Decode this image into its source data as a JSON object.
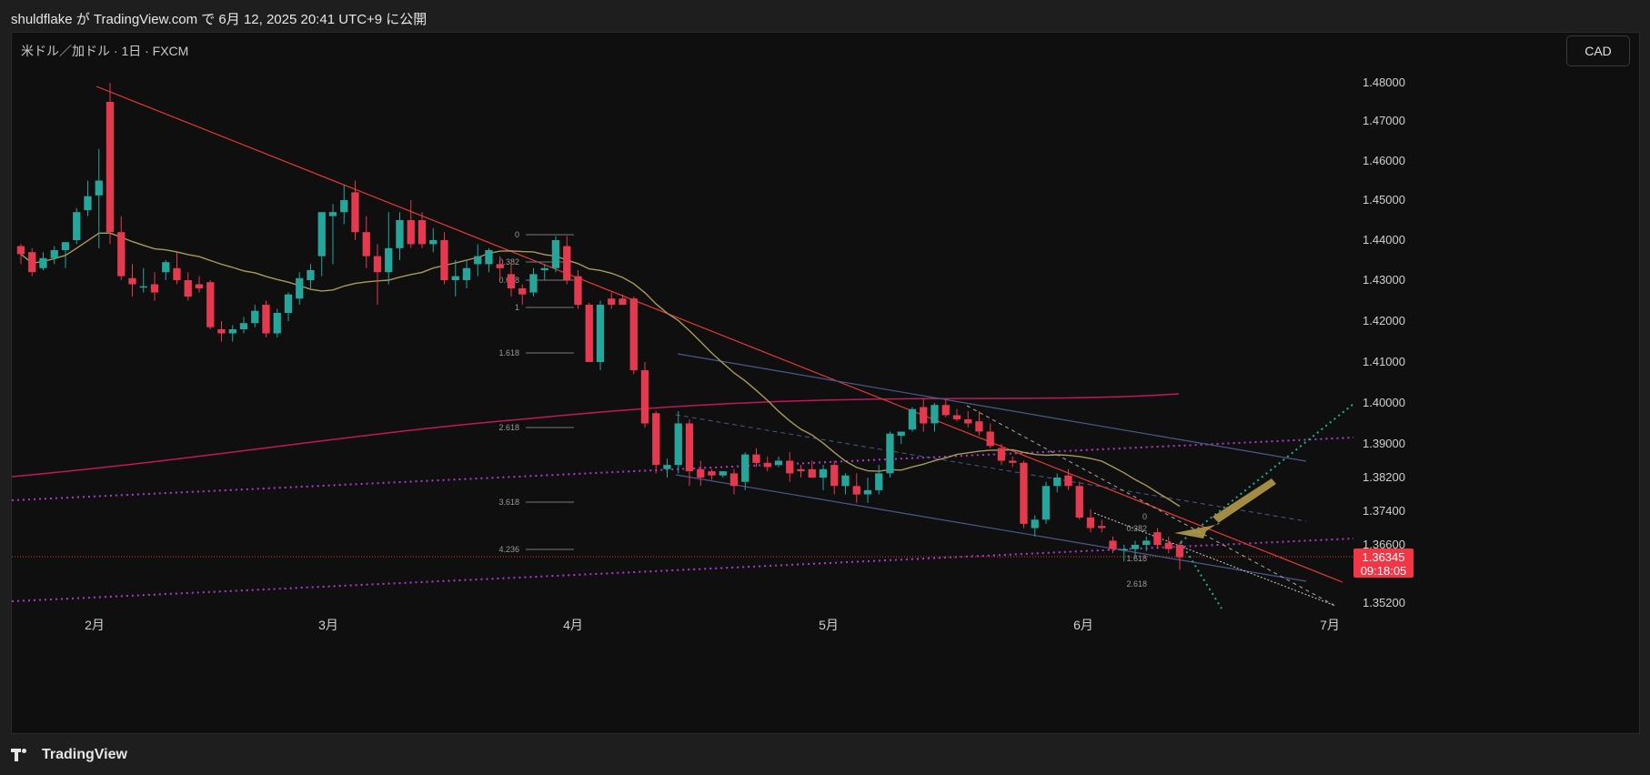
{
  "header": {
    "title": "shuldflake が TradingView.com で 6月 12, 2025 20:41 UTC+9 に公開"
  },
  "symbol": {
    "label": "米ドル／加ドル · 1日 · FXCM"
  },
  "currency_button": "CAD",
  "footer": {
    "brand": "TradingView"
  },
  "colors": {
    "up": "#26a69a",
    "down": "#e5394f",
    "ma_short": "#a89a5a",
    "ma_long": "#c2185b",
    "trend_red": "#e53935",
    "channel_blue": "#4a5a8a",
    "dotted_magenta": "#b03ad0",
    "dotted_green": "#22b08a",
    "arrow": "#b39a4a"
  },
  "chart_data": {
    "type": "candlestick",
    "symbol": "USDCAD",
    "timeframe": "1日",
    "x_months": [
      "2月",
      "3月",
      "4月",
      "5月",
      "6月",
      "7月"
    ],
    "y_ticks": [
      "1.48000",
      "1.47000",
      "1.46000",
      "1.45000",
      "1.44000",
      "1.43000",
      "1.42000",
      "1.41000",
      "1.40000",
      "1.39000",
      "1.38200",
      "1.37400",
      "1.36600",
      "1.35200"
    ],
    "last_price": "1.36345",
    "countdown": "09:18:05",
    "ylim": [
      1.349,
      1.487
    ],
    "candles_ohlc": [
      [
        1.4385,
        1.439,
        1.434,
        1.4365
      ],
      [
        1.437,
        1.438,
        1.431,
        1.432
      ],
      [
        1.433,
        1.437,
        1.4325,
        1.4355
      ],
      [
        1.4355,
        1.4385,
        1.434,
        1.4375
      ],
      [
        1.4375,
        1.4395,
        1.433,
        1.4395
      ],
      [
        1.44,
        1.448,
        1.439,
        1.447
      ],
      [
        1.4475,
        1.455,
        1.446,
        1.451
      ],
      [
        1.4512,
        1.463,
        1.438,
        1.455
      ],
      [
        1.475,
        1.48,
        1.439,
        1.442
      ],
      [
        1.442,
        1.446,
        1.43,
        1.431
      ],
      [
        1.4305,
        1.434,
        1.426,
        1.429
      ],
      [
        1.4285,
        1.433,
        1.427,
        1.4285
      ],
      [
        1.429,
        1.432,
        1.425,
        1.427
      ],
      [
        1.432,
        1.435,
        1.43,
        1.4345
      ],
      [
        1.433,
        1.437,
        1.429,
        1.43
      ],
      [
        1.43,
        1.432,
        1.425,
        1.426
      ],
      [
        1.429,
        1.431,
        1.427,
        1.428
      ],
      [
        1.4295,
        1.43,
        1.418,
        1.4185
      ],
      [
        1.418,
        1.42,
        1.415,
        1.417
      ],
      [
        1.417,
        1.419,
        1.415,
        1.418
      ],
      [
        1.418,
        1.421,
        1.417,
        1.4195
      ],
      [
        1.4195,
        1.424,
        1.4185,
        1.4225
      ],
      [
        1.424,
        1.425,
        1.416,
        1.417
      ],
      [
        1.417,
        1.423,
        1.416,
        1.422
      ],
      [
        1.422,
        1.427,
        1.42,
        1.4265
      ],
      [
        1.4255,
        1.432,
        1.424,
        1.4305
      ],
      [
        1.43,
        1.434,
        1.428,
        1.4325
      ],
      [
        1.436,
        1.444,
        1.431,
        1.447
      ],
      [
        1.446,
        1.449,
        1.434,
        1.447
      ],
      [
        1.447,
        1.454,
        1.444,
        1.45
      ],
      [
        1.452,
        1.455,
        1.44,
        1.442
      ],
      [
        1.442,
        1.446,
        1.433,
        1.436
      ],
      [
        1.436,
        1.439,
        1.424,
        1.432
      ],
      [
        1.432,
        1.447,
        1.429,
        1.438
      ],
      [
        1.438,
        1.447,
        1.435,
        1.445
      ],
      [
        1.445,
        1.45,
        1.438,
        1.439
      ],
      [
        1.445,
        1.447,
        1.438,
        1.439
      ],
      [
        1.439,
        1.443,
        1.437,
        1.44
      ],
      [
        1.44,
        1.442,
        1.429,
        1.43
      ],
      [
        1.43,
        1.435,
        1.426,
        1.431
      ],
      [
        1.43,
        1.435,
        1.428,
        1.433
      ],
      [
        1.434,
        1.439,
        1.431,
        1.436
      ],
      [
        1.434,
        1.438,
        1.432,
        1.4375
      ],
      [
        1.434,
        1.436,
        1.43,
        1.433
      ],
      [
        1.4315,
        1.434,
        1.426,
        1.428
      ],
      [
        1.428,
        1.429,
        1.424,
        1.4265
      ],
      [
        1.427,
        1.433,
        1.426,
        1.4315
      ],
      [
        1.4325,
        1.434,
        1.43,
        1.433
      ],
      [
        1.433,
        1.441,
        1.432,
        1.44
      ],
      [
        1.4385,
        1.441,
        1.429,
        1.43
      ],
      [
        1.431,
        1.4325,
        1.423,
        1.424
      ],
      [
        1.424,
        1.4245,
        1.41,
        1.41
      ],
      [
        1.41,
        1.425,
        1.408,
        1.424
      ],
      [
        1.4255,
        1.427,
        1.423,
        1.424
      ],
      [
        1.4255,
        1.4265,
        1.424,
        1.424
      ],
      [
        1.4255,
        1.426,
        1.407,
        1.408
      ],
      [
        1.408,
        1.41,
        1.394,
        1.395
      ],
      [
        1.3975,
        1.398,
        1.383,
        1.385
      ],
      [
        1.384,
        1.3865,
        1.382,
        1.385
      ],
      [
        1.385,
        1.398,
        1.383,
        1.395
      ],
      [
        1.395,
        1.396,
        1.38,
        1.3835
      ],
      [
        1.384,
        1.386,
        1.38,
        1.382
      ],
      [
        1.3835,
        1.384,
        1.3815,
        1.3825
      ],
      [
        1.3825,
        1.3835,
        1.382,
        1.3835
      ],
      [
        1.383,
        1.384,
        1.378,
        1.38
      ],
      [
        1.381,
        1.388,
        1.379,
        1.3875
      ],
      [
        1.3875,
        1.389,
        1.3845,
        1.3855
      ],
      [
        1.3855,
        1.387,
        1.3835,
        1.3845
      ],
      [
        1.385,
        1.387,
        1.3845,
        1.386
      ],
      [
        1.386,
        1.388,
        1.381,
        1.383
      ],
      [
        1.384,
        1.385,
        1.382,
        1.3835
      ],
      [
        1.384,
        1.386,
        1.382,
        1.382
      ],
      [
        1.382,
        1.385,
        1.379,
        1.384
      ],
      [
        1.385,
        1.386,
        1.378,
        1.38
      ],
      [
        1.38,
        1.383,
        1.378,
        1.3825
      ],
      [
        1.38,
        1.383,
        1.376,
        1.378
      ],
      [
        1.378,
        1.382,
        1.376,
        1.379
      ],
      [
        1.379,
        1.385,
        1.378,
        1.383
      ],
      [
        1.383,
        1.393,
        1.382,
        1.3925
      ],
      [
        1.392,
        1.393,
        1.39,
        1.393
      ],
      [
        1.3935,
        1.399,
        1.393,
        1.3985
      ],
      [
        1.399,
        1.401,
        1.393,
        1.395
      ],
      [
        1.395,
        1.4,
        1.393,
        1.3995
      ],
      [
        1.3995,
        1.401,
        1.3965,
        1.397
      ],
      [
        1.397,
        1.3985,
        1.3955,
        1.396
      ],
      [
        1.396,
        1.398,
        1.394,
        1.395
      ],
      [
        1.3955,
        1.398,
        1.392,
        1.393
      ],
      [
        1.393,
        1.395,
        1.389,
        1.3895
      ],
      [
        1.389,
        1.39,
        1.385,
        1.386
      ],
      [
        1.386,
        1.387,
        1.3845,
        1.3855
      ],
      [
        1.3855,
        1.386,
        1.37,
        1.371
      ],
      [
        1.37,
        1.373,
        1.368,
        1.372
      ],
      [
        1.372,
        1.381,
        1.371,
        1.38
      ],
      [
        1.38,
        1.383,
        1.3785,
        1.382
      ],
      [
        1.3825,
        1.384,
        1.379,
        1.38
      ],
      [
        1.38,
        1.381,
        1.372,
        1.3725
      ],
      [
        1.3725,
        1.3745,
        1.369,
        1.37
      ],
      [
        1.3705,
        1.372,
        1.369,
        1.37
      ],
      [
        1.367,
        1.368,
        1.364,
        1.365
      ],
      [
        1.365,
        1.366,
        1.362,
        1.365
      ],
      [
        1.365,
        1.367,
        1.363,
        1.366
      ],
      [
        1.366,
        1.368,
        1.3645,
        1.367
      ],
      [
        1.369,
        1.37,
        1.365,
        1.366
      ],
      [
        1.3665,
        1.368,
        1.364,
        1.365
      ],
      [
        1.366,
        1.3665,
        1.36,
        1.363
      ]
    ],
    "fib_left_labels": [
      "0",
      "0.382",
      "0.618",
      "1",
      "1.618",
      "2.618",
      "3.618",
      "4.236"
    ],
    "fib_right_labels": [
      "0",
      "0.382",
      "1.618",
      "2.618"
    ]
  }
}
